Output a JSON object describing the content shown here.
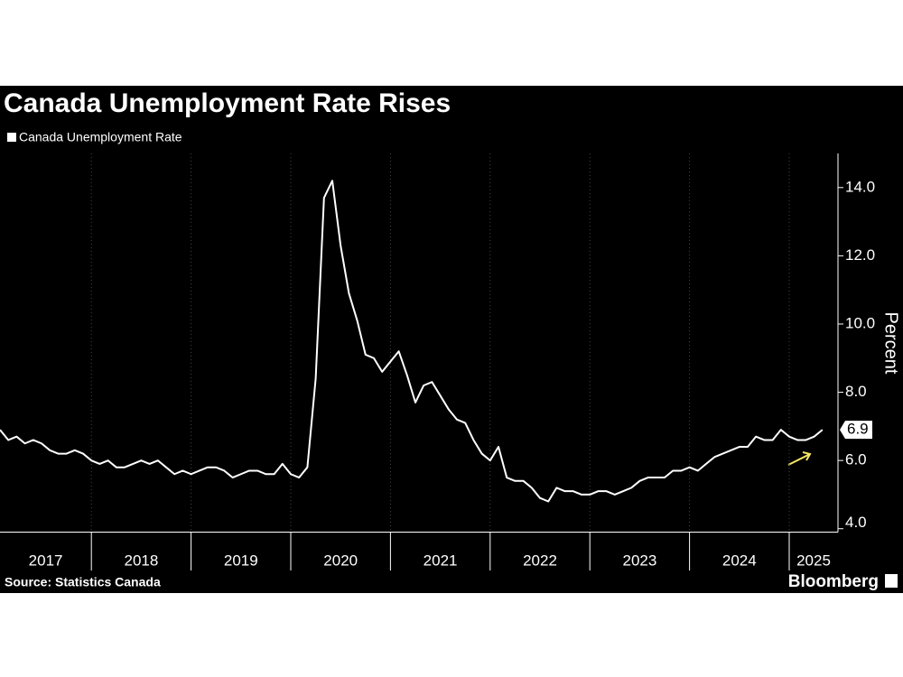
{
  "chart_data": {
    "type": "line",
    "title": "Canada Unemployment Rate Rises",
    "y_label": "Percent",
    "source": "Source: Statistics Canada",
    "logo": "Bloomberg",
    "x": [
      "2017-02",
      "2017-03",
      "2017-04",
      "2017-05",
      "2017-06",
      "2017-07",
      "2017-08",
      "2017-09",
      "2017-10",
      "2017-11",
      "2017-12",
      "2018-01",
      "2018-02",
      "2018-03",
      "2018-04",
      "2018-05",
      "2018-06",
      "2018-07",
      "2018-08",
      "2018-09",
      "2018-10",
      "2018-11",
      "2018-12",
      "2019-01",
      "2019-02",
      "2019-03",
      "2019-04",
      "2019-05",
      "2019-06",
      "2019-07",
      "2019-08",
      "2019-09",
      "2019-10",
      "2019-11",
      "2019-12",
      "2020-01",
      "2020-02",
      "2020-03",
      "2020-04",
      "2020-05",
      "2020-06",
      "2020-07",
      "2020-08",
      "2020-09",
      "2020-10",
      "2020-11",
      "2020-12",
      "2021-01",
      "2021-02",
      "2021-03",
      "2021-04",
      "2021-05",
      "2021-06",
      "2021-07",
      "2021-08",
      "2021-09",
      "2021-10",
      "2021-11",
      "2021-12",
      "2022-01",
      "2022-02",
      "2022-03",
      "2022-04",
      "2022-05",
      "2022-06",
      "2022-07",
      "2022-08",
      "2022-09",
      "2022-10",
      "2022-11",
      "2022-12",
      "2023-01",
      "2023-02",
      "2023-03",
      "2023-04",
      "2023-05",
      "2023-06",
      "2023-07",
      "2023-08",
      "2023-09",
      "2023-10",
      "2023-11",
      "2023-12",
      "2024-01",
      "2024-02",
      "2024-03",
      "2024-04",
      "2024-05",
      "2024-06",
      "2024-07",
      "2024-08",
      "2024-09",
      "2024-10",
      "2024-11",
      "2024-12",
      "2025-01",
      "2025-02",
      "2025-03",
      "2025-04",
      "2025-05"
    ],
    "series": [
      {
        "name": "Canada Unemployment Rate",
        "color": "#ffffff",
        "values": [
          6.9,
          6.6,
          6.7,
          6.5,
          6.6,
          6.5,
          6.3,
          6.2,
          6.2,
          6.3,
          6.2,
          6.0,
          5.9,
          6.0,
          5.8,
          5.8,
          5.9,
          6.0,
          5.9,
          6.0,
          5.8,
          5.6,
          5.7,
          5.6,
          5.7,
          5.8,
          5.8,
          5.7,
          5.5,
          5.6,
          5.7,
          5.7,
          5.6,
          5.6,
          5.9,
          5.6,
          5.5,
          5.8,
          8.4,
          13.7,
          14.2,
          12.3,
          10.9,
          10.1,
          9.1,
          9.0,
          8.6,
          8.9,
          9.2,
          8.5,
          7.7,
          8.2,
          8.3,
          7.9,
          7.5,
          7.2,
          7.1,
          6.6,
          6.2,
          6.0,
          6.4,
          5.5,
          5.4,
          5.4,
          5.2,
          4.9,
          4.8,
          5.2,
          5.1,
          5.1,
          5.0,
          5.0,
          5.1,
          5.1,
          5.0,
          5.1,
          5.2,
          5.4,
          5.5,
          5.5,
          5.5,
          5.7,
          5.7,
          5.8,
          5.7,
          5.9,
          6.1,
          6.2,
          6.3,
          6.4,
          6.4,
          6.7,
          6.6,
          6.6,
          6.9,
          6.7,
          6.6,
          6.6,
          6.7,
          6.9
        ],
        "last_value_label": "6.9"
      }
    ],
    "xlim": [
      "2017-02",
      "2025-06"
    ],
    "xticks": [
      "2017",
      "2018",
      "2019",
      "2020",
      "2021",
      "2022",
      "2023",
      "2024",
      "2025"
    ],
    "ylim": [
      3.9,
      15.0
    ],
    "yticks": [
      {
        "value": 4,
        "label": "4.0"
      },
      {
        "value": 6,
        "label": "6.0"
      },
      {
        "value": 8,
        "label": "8.0"
      },
      {
        "value": 10,
        "label": "10.0"
      },
      {
        "value": 12,
        "label": "12.0"
      },
      {
        "value": 14,
        "label": "14.0"
      }
    ]
  }
}
